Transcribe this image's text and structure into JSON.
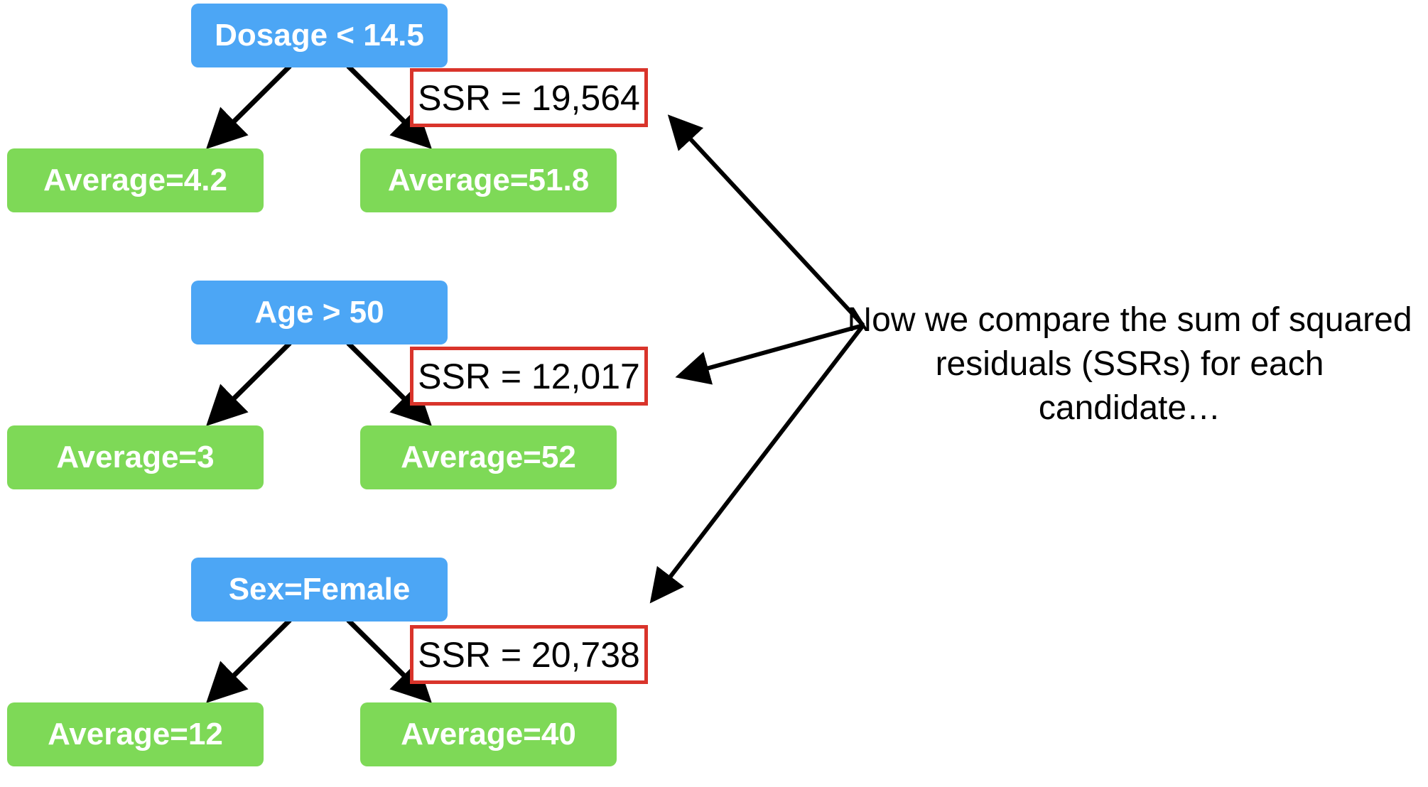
{
  "trees": [
    {
      "root_label": "Dosage < 14.5",
      "left_leaf": "Average=4.2",
      "right_leaf": "Average=51.8",
      "ssr_label": "SSR = 19,564"
    },
    {
      "root_label": "Age > 50",
      "left_leaf": "Average=3",
      "right_leaf": "Average=52",
      "ssr_label": "SSR = 12,017"
    },
    {
      "root_label": "Sex=Female",
      "left_leaf": "Average=12",
      "right_leaf": "Average=40",
      "ssr_label": "SSR = 20,738"
    }
  ],
  "note": "Now we compare the sum of squared residuals (SSRs) for each candidate…",
  "colors": {
    "root_fill": "#4ca6f5",
    "leaf_fill": "#7ed957",
    "ssr_border": "#d9342b",
    "arrow": "#000000"
  }
}
